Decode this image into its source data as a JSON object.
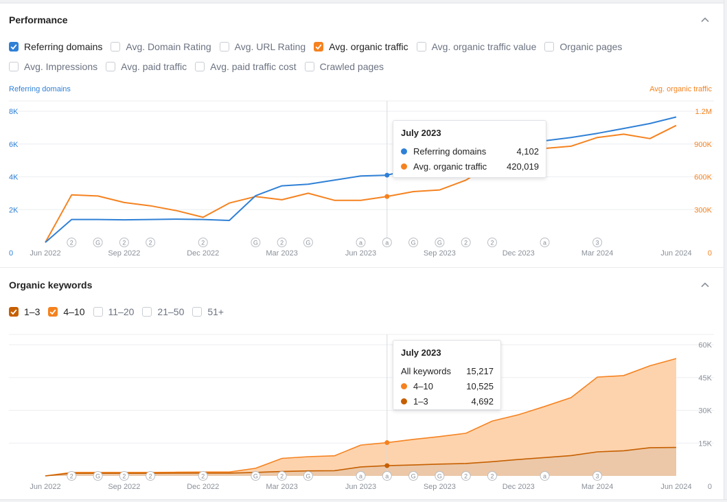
{
  "performance": {
    "title": "Performance",
    "metrics": [
      {
        "label": "Referring domains",
        "checked": true,
        "color": "#2f80d6"
      },
      {
        "label": "Avg. Domain Rating",
        "checked": false
      },
      {
        "label": "Avg. URL Rating",
        "checked": false
      },
      {
        "label": "Avg. organic traffic",
        "checked": true,
        "color": "#f5821f"
      },
      {
        "label": "Avg. organic traffic value",
        "checked": false
      },
      {
        "label": "Organic pages",
        "checked": false
      },
      {
        "label": "Avg. Impressions",
        "checked": false
      },
      {
        "label": "Avg. paid traffic",
        "checked": false
      },
      {
        "label": "Avg. paid traffic cost",
        "checked": false
      },
      {
        "label": "Crawled pages",
        "checked": false
      }
    ],
    "left_axis_title": "Referring domains",
    "right_axis_title": "Avg. organic traffic",
    "tooltip": {
      "title": "July 2023",
      "rows": [
        {
          "label": "Referring domains",
          "value": "4,102",
          "color": "#2f80d6"
        },
        {
          "label": "Avg. organic traffic",
          "value": "420,019",
          "color": "#f5821f"
        }
      ]
    }
  },
  "keywords": {
    "title": "Organic keywords",
    "filters": [
      {
        "label": "1–3",
        "checked": true,
        "color": "#c65f00"
      },
      {
        "label": "4–10",
        "checked": true,
        "color": "#f5821f"
      },
      {
        "label": "11–20",
        "checked": false
      },
      {
        "label": "21–50",
        "checked": false
      },
      {
        "label": "51+",
        "checked": false
      }
    ],
    "tooltip": {
      "title": "July 2023",
      "rows": [
        {
          "label": "All keywords",
          "value": "15,217",
          "color": ""
        },
        {
          "label": "4–10",
          "value": "10,525",
          "color": "#f5821f"
        },
        {
          "label": "1–3",
          "value": "4,692",
          "color": "#c65f00"
        }
      ]
    }
  },
  "chart_data": [
    {
      "type": "line",
      "xlabels": [
        "Jun 2022",
        "Sep 2022",
        "Dec 2022",
        "Mar 2023",
        "Jun 2023",
        "Sep 2023",
        "Dec 2023",
        "Mar 2024",
        "Jun 2024"
      ],
      "x": [
        "2022-06",
        "2022-07",
        "2022-08",
        "2022-09",
        "2022-10",
        "2022-11",
        "2022-12",
        "2023-01",
        "2023-02",
        "2023-03",
        "2023-04",
        "2023-05",
        "2023-06",
        "2023-07",
        "2023-08",
        "2023-09",
        "2023-10",
        "2023-11",
        "2023-12",
        "2024-01",
        "2024-02",
        "2024-03",
        "2024-04",
        "2024-05",
        "2024-06"
      ],
      "ylabels_left": [
        "0",
        "2K",
        "4K",
        "6K",
        "8K"
      ],
      "ylabels_right": [
        "0",
        "300K",
        "600K",
        "900K",
        "1.2M"
      ],
      "ylim_left": [
        0,
        8000
      ],
      "ylim_right": [
        0,
        1200000
      ],
      "series": [
        {
          "name": "Referring domains",
          "axis": "left",
          "color": "#2f80d6",
          "values": [
            0,
            1400,
            1400,
            1380,
            1400,
            1420,
            1400,
            1340,
            2850,
            3450,
            3550,
            3800,
            4050,
            4102,
            4500,
            4900,
            5400,
            5700,
            5950,
            6200,
            6400,
            6650,
            6950,
            7250,
            7650
          ]
        },
        {
          "name": "Avg. organic traffic",
          "axis": "right",
          "color": "#f5821f",
          "values": [
            0,
            435000,
            425000,
            365000,
            335000,
            290000,
            230000,
            360000,
            420000,
            390000,
            450000,
            385000,
            385000,
            420019,
            465000,
            480000,
            570000,
            720000,
            800000,
            860000,
            880000,
            960000,
            990000,
            950000,
            1070000
          ]
        }
      ],
      "annotations": [
        {
          "x": "2022-07",
          "label": "2"
        },
        {
          "x": "2022-08",
          "label": "G"
        },
        {
          "x": "2022-09",
          "label": "2"
        },
        {
          "x": "2022-10",
          "label": "2"
        },
        {
          "x": "2022-12",
          "label": "2"
        },
        {
          "x": "2023-02",
          "label": "G"
        },
        {
          "x": "2023-03",
          "label": "2"
        },
        {
          "x": "2023-04",
          "label": "G"
        },
        {
          "x": "2023-06",
          "label": "a"
        },
        {
          "x": "2023-07",
          "label": "a"
        },
        {
          "x": "2023-08",
          "label": "G"
        },
        {
          "x": "2023-09",
          "label": "G"
        },
        {
          "x": "2023-10",
          "label": "2"
        },
        {
          "x": "2023-11",
          "label": "2"
        },
        {
          "x": "2024-01",
          "label": "a"
        },
        {
          "x": "2024-03",
          "label": "3"
        }
      ],
      "hover_x": "2023-07",
      "grid": true
    },
    {
      "type": "area",
      "xlabels": [
        "Jun 2022",
        "Sep 2022",
        "Dec 2022",
        "Mar 2023",
        "Jun 2023",
        "Sep 2023",
        "Dec 2023",
        "Mar 2024",
        "Jun 2024"
      ],
      "x": [
        "2022-06",
        "2022-07",
        "2022-08",
        "2022-09",
        "2022-10",
        "2022-11",
        "2022-12",
        "2023-01",
        "2023-02",
        "2023-03",
        "2023-04",
        "2023-05",
        "2023-06",
        "2023-07",
        "2023-08",
        "2023-09",
        "2023-10",
        "2023-11",
        "2023-12",
        "2024-01",
        "2024-02",
        "2024-03",
        "2024-04",
        "2024-05",
        "2024-06"
      ],
      "ylabels": [
        "0",
        "15K",
        "30K",
        "45K",
        "60K"
      ],
      "ylim": [
        0,
        60000
      ],
      "stacked": true,
      "series": [
        {
          "name": "1–3",
          "color": "#c65f00",
          "values": [
            0,
            1200,
            1200,
            1200,
            1200,
            1300,
            1300,
            1300,
            1600,
            2000,
            2300,
            2400,
            4100,
            4692,
            5000,
            5400,
            5700,
            6500,
            7500,
            8400,
            9300,
            11000,
            11500,
            12900,
            13000
          ]
        },
        {
          "name": "4–10",
          "color": "#f5821f",
          "values": [
            0,
            400,
            400,
            400,
            400,
            400,
            500,
            500,
            1900,
            6000,
            6500,
            6800,
            10000,
            10525,
            11700,
            12600,
            13800,
            18600,
            20500,
            23400,
            26500,
            34200,
            34400,
            37500,
            40700
          ]
        }
      ],
      "annotations": [
        {
          "x": "2022-07",
          "label": "2"
        },
        {
          "x": "2022-08",
          "label": "G"
        },
        {
          "x": "2022-09",
          "label": "2"
        },
        {
          "x": "2022-10",
          "label": "2"
        },
        {
          "x": "2022-12",
          "label": "2"
        },
        {
          "x": "2023-02",
          "label": "G"
        },
        {
          "x": "2023-03",
          "label": "2"
        },
        {
          "x": "2023-04",
          "label": "G"
        },
        {
          "x": "2023-06",
          "label": "a"
        },
        {
          "x": "2023-07",
          "label": "a"
        },
        {
          "x": "2023-08",
          "label": "G"
        },
        {
          "x": "2023-09",
          "label": "G"
        },
        {
          "x": "2023-10",
          "label": "2"
        },
        {
          "x": "2023-11",
          "label": "2"
        },
        {
          "x": "2024-01",
          "label": "a"
        },
        {
          "x": "2024-03",
          "label": "3"
        }
      ],
      "hover_x": "2023-07",
      "grid": true
    }
  ]
}
